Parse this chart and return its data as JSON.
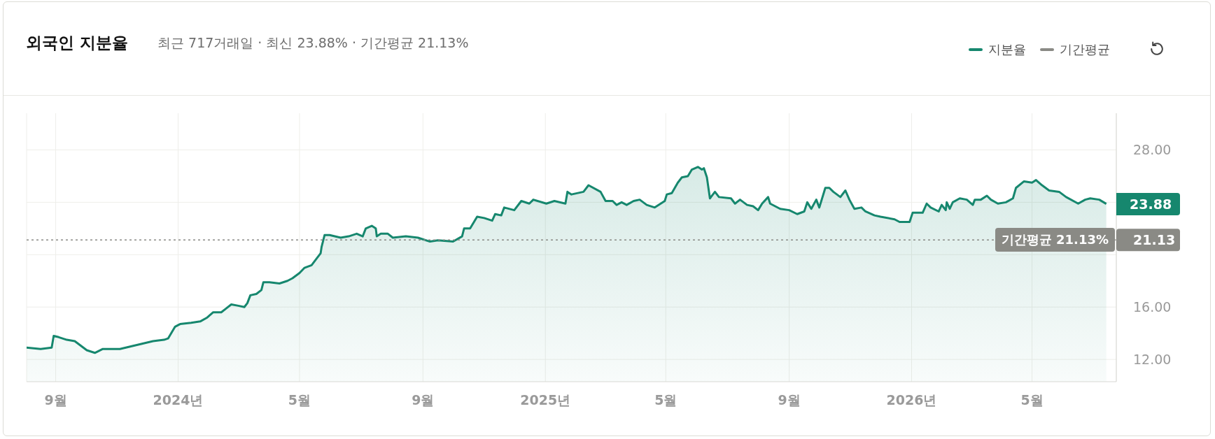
{
  "chart_data": {
    "type": "area",
    "title": "외국인 지분율",
    "subtitle": "최근 717거래일 · 최신 23.88% · 기간평균 21.13%",
    "xlim": [
      "2023-08-03",
      "2026-07-24"
    ],
    "xticks": [
      {
        "value": "2023-09-01",
        "label": "9월"
      },
      {
        "value": "2024-01-01",
        "label": "2024년"
      },
      {
        "value": "2024-05-01",
        "label": "5월"
      },
      {
        "value": "2024-09-01",
        "label": "9월"
      },
      {
        "value": "2025-01-01",
        "label": "2025년"
      },
      {
        "value": "2025-05-01",
        "label": "5월"
      },
      {
        "value": "2025-09-01",
        "label": "9월"
      },
      {
        "value": "2026-01-01",
        "label": "2026년"
      },
      {
        "value": "2026-05-01",
        "label": "5월"
      }
    ],
    "ylim": [
      10.3,
      30.8
    ],
    "yticks": [
      {
        "value": 12,
        "label": "12.00"
      },
      {
        "value": 16,
        "label": "16.00"
      },
      {
        "value": 20,
        "label": null
      },
      21.13,
      {
        "value": 24,
        "label": null
      },
      {
        "value": 28,
        "label": "28.00"
      }
    ],
    "grid": true,
    "legend": "top right",
    "series": [
      {
        "name": "지분율",
        "color": "#16876e",
        "x": [
          "2023-08-03",
          "2023-08-17",
          "2023-08-28",
          "2023-08-30",
          "2023-09-04",
          "2023-09-12",
          "2023-09-20",
          "2023-10-02",
          "2023-10-10",
          "2023-10-18",
          "2023-10-29",
          "2023-11-04",
          "2023-11-15",
          "2023-11-26",
          "2023-12-07",
          "2023-12-18",
          "2023-12-22",
          "2023-12-29",
          "2024-01-03",
          "2024-01-14",
          "2024-01-23",
          "2024-01-30",
          "2024-02-05",
          "2024-02-13",
          "2024-02-18",
          "2024-02-23",
          "2024-03-01",
          "2024-03-07",
          "2024-03-10",
          "2024-03-13",
          "2024-03-19",
          "2024-03-24",
          "2024-03-26",
          "2024-04-01",
          "2024-04-11",
          "2024-04-19",
          "2024-04-24",
          "2024-05-01",
          "2024-05-06",
          "2024-05-13",
          "2024-05-18",
          "2024-05-22",
          "2024-05-23",
          "2024-05-26",
          "2024-05-31",
          "2024-06-11",
          "2024-06-19",
          "2024-06-27",
          "2024-07-03",
          "2024-07-06",
          "2024-07-12",
          "2024-07-16",
          "2024-07-17",
          "2024-07-21",
          "2024-07-28",
          "2024-08-02",
          "2024-08-15",
          "2024-08-27",
          "2024-09-08",
          "2024-09-16",
          "2024-10-01",
          "2024-10-10",
          "2024-10-12",
          "2024-10-18",
          "2024-10-25",
          "2024-11-01",
          "2024-11-09",
          "2024-11-12",
          "2024-11-18",
          "2024-11-21",
          "2024-12-01",
          "2024-12-08",
          "2024-12-16",
          "2024-12-20",
          "2025-01-02",
          "2025-01-10",
          "2025-01-21",
          "2025-01-23",
          "2025-01-27",
          "2025-02-08",
          "2025-02-13",
          "2025-02-25",
          "2025-03-02",
          "2025-03-09",
          "2025-03-13",
          "2025-03-18",
          "2025-03-23",
          "2025-03-30",
          "2025-04-05",
          "2025-04-12",
          "2025-04-20",
          "2025-04-30",
          "2025-05-02",
          "2025-05-07",
          "2025-05-13",
          "2025-05-17",
          "2025-05-23",
          "2025-05-27",
          "2025-06-02",
          "2025-06-06",
          "2025-06-08",
          "2025-06-11",
          "2025-06-14",
          "2025-06-19",
          "2025-06-23",
          "2025-07-05",
          "2025-07-09",
          "2025-07-14",
          "2025-07-21",
          "2025-07-27",
          "2025-08-01",
          "2025-08-05",
          "2025-08-11",
          "2025-08-13",
          "2025-08-23",
          "2025-09-01",
          "2025-09-09",
          "2025-09-16",
          "2025-09-19",
          "2025-09-23",
          "2025-09-28",
          "2025-10-01",
          "2025-10-07",
          "2025-10-11",
          "2025-10-15",
          "2025-10-22",
          "2025-10-27",
          "2025-10-31",
          "2025-11-05",
          "2025-11-12",
          "2025-11-16",
          "2025-11-25",
          "2025-12-01",
          "2025-12-15",
          "2025-12-20",
          "2025-12-30",
          "2026-01-02",
          "2026-01-12",
          "2026-01-16",
          "2026-01-20",
          "2026-01-28",
          "2026-01-31",
          "2026-02-04",
          "2026-02-05",
          "2026-02-08",
          "2026-02-11",
          "2026-02-18",
          "2026-02-25",
          "2026-03-03",
          "2026-03-05",
          "2026-03-11",
          "2026-03-17",
          "2026-03-21",
          "2026-03-28",
          "2026-04-05",
          "2026-04-12",
          "2026-04-15",
          "2026-04-23",
          "2026-05-01",
          "2026-05-05",
          "2026-05-11",
          "2026-05-18",
          "2026-05-28",
          "2026-06-04",
          "2026-06-16",
          "2026-06-23",
          "2026-06-28",
          "2026-07-07",
          "2026-07-14"
        ],
        "values": [
          12.9,
          12.8,
          12.9,
          13.8,
          13.7,
          13.5,
          13.4,
          12.7,
          12.5,
          12.8,
          12.8,
          12.8,
          13.0,
          13.2,
          13.4,
          13.5,
          13.6,
          14.5,
          14.7,
          14.8,
          14.9,
          15.2,
          15.6,
          15.6,
          15.9,
          16.2,
          16.1,
          16.0,
          16.3,
          16.9,
          17.0,
          17.3,
          17.9,
          17.9,
          17.8,
          18.0,
          18.2,
          18.6,
          19.0,
          19.2,
          19.7,
          20.1,
          20.6,
          21.5,
          21.5,
          21.3,
          21.4,
          21.6,
          21.4,
          22.0,
          22.2,
          22.0,
          21.4,
          21.6,
          21.6,
          21.3,
          21.4,
          21.3,
          21.0,
          21.1,
          21.0,
          21.4,
          22.0,
          22.0,
          22.9,
          22.8,
          22.6,
          23.1,
          23.0,
          23.6,
          23.4,
          24.1,
          23.9,
          24.2,
          23.9,
          24.1,
          23.9,
          24.8,
          24.6,
          24.8,
          25.3,
          24.8,
          24.1,
          24.1,
          23.8,
          24.0,
          23.8,
          24.1,
          24.2,
          23.8,
          23.6,
          24.1,
          24.6,
          24.7,
          25.5,
          25.9,
          26.0,
          26.5,
          26.7,
          26.5,
          26.6,
          25.9,
          24.3,
          24.8,
          24.4,
          24.3,
          23.9,
          24.2,
          23.8,
          23.7,
          23.4,
          23.9,
          24.4,
          23.9,
          23.5,
          23.4,
          23.1,
          23.3,
          24.0,
          23.5,
          24.2,
          23.6,
          25.1,
          25.1,
          24.8,
          24.4,
          24.9,
          24.2,
          23.5,
          23.6,
          23.3,
          23.0,
          22.9,
          22.7,
          22.5,
          22.5,
          23.2,
          23.2,
          23.9,
          23.6,
          23.3,
          23.8,
          23.4,
          24.0,
          23.5,
          24.0,
          24.3,
          24.2,
          23.8,
          24.2,
          24.2,
          24.5,
          24.2,
          23.9,
          24.0,
          24.3,
          25.1,
          25.6,
          25.5,
          25.7,
          25.3,
          24.9,
          24.8,
          24.4,
          23.9,
          24.2,
          24.3,
          24.2,
          23.88
        ],
        "value_labels": [
          null,
          null,
          null,
          null,
          null,
          null,
          null,
          null,
          null,
          null,
          null,
          null,
          null,
          null,
          null,
          null,
          null,
          null,
          null,
          null,
          null,
          null,
          null,
          null,
          null,
          null,
          null,
          null,
          null,
          null,
          null,
          null,
          null,
          null,
          null,
          null,
          null,
          null,
          null,
          null,
          null,
          null,
          null,
          null,
          null,
          null,
          null,
          null,
          null,
          null,
          null,
          null,
          null,
          null,
          null,
          null,
          null,
          null,
          null,
          null,
          null,
          null,
          null,
          null,
          null,
          null,
          null,
          null,
          null,
          null,
          null,
          null,
          null,
          null,
          null,
          null,
          null,
          null,
          null,
          null,
          null,
          null,
          null,
          null,
          null,
          null,
          null,
          null,
          null,
          null,
          null,
          null,
          null,
          null,
          null,
          null,
          null,
          null,
          null,
          null,
          null,
          null,
          null,
          null,
          null,
          null,
          null,
          null,
          null,
          null,
          null,
          null,
          null,
          null,
          null,
          null,
          null,
          null,
          null,
          null,
          null,
          null,
          null,
          null,
          null,
          null,
          null,
          null,
          null,
          null,
          null,
          null,
          null,
          null,
          null,
          null,
          null,
          null,
          null,
          null,
          null,
          null,
          null,
          null,
          null,
          null,
          null,
          null,
          null,
          null,
          null,
          null,
          null,
          null,
          null,
          null,
          null,
          null,
          null,
          null,
          null,
          null,
          null,
          null,
          null,
          null,
          null,
          null,
          "23.88"
        ]
      },
      {
        "name": "기간평균",
        "type": "line",
        "color": "#8a8a85",
        "line_style": "dotted",
        "x": [
          "2023-08-03",
          "2026-07-24"
        ],
        "values": [
          21.13,
          21.13
        ],
        "value_labels": [
          null,
          "기간평균 21.13%"
        ]
      }
    ]
  }
}
